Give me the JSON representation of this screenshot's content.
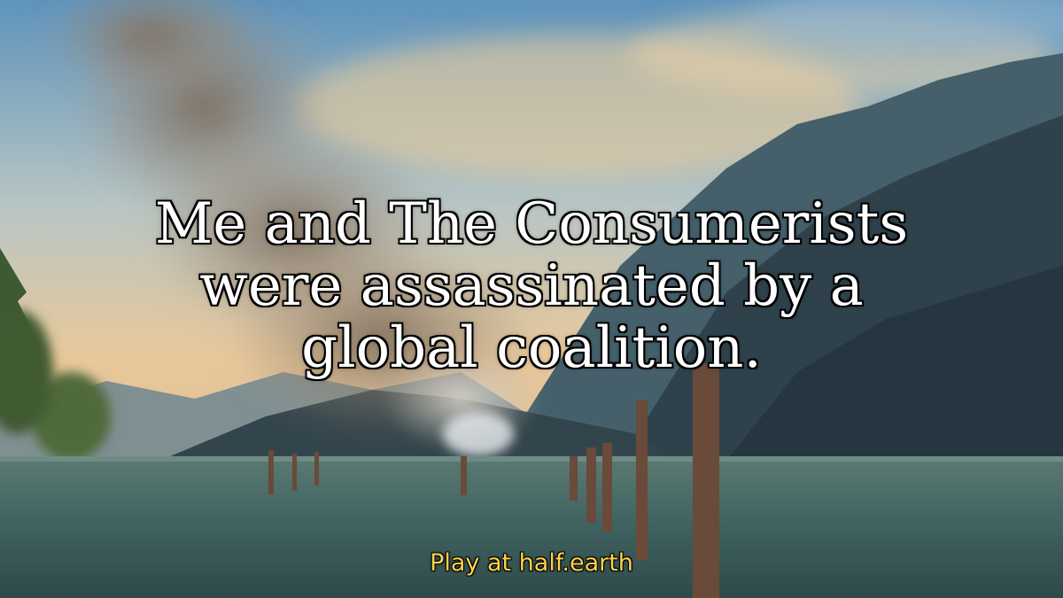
{
  "scene": {
    "headline_lines": [
      "Me and The Consumerists",
      "were assassinated by a",
      "global coalition."
    ],
    "footer_text": "Play at half.earth"
  },
  "colors": {
    "headline_text": "#ffffff",
    "headline_outline": "#000000",
    "footer_text": "#ffd24a",
    "sky_top": "#6a9cc0",
    "sky_warm": "#f2c98e",
    "smoke": "#8a7a6a",
    "mountain_dark": "#2b3b44",
    "mountain_far": "#6f8690",
    "water": "#3f6160",
    "piling": "#6a4a38"
  },
  "icons": {
    "background": "wildfire-lake-scene"
  }
}
